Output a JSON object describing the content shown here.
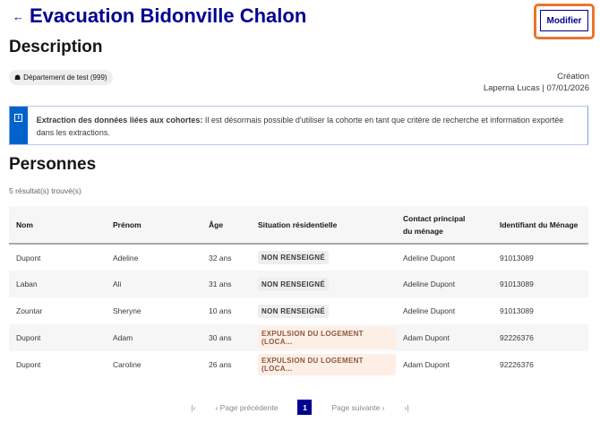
{
  "header": {
    "title": "Evacuation Bidonville Chalon",
    "back_icon": "←",
    "edit_label": "Modifier"
  },
  "description": {
    "heading": "Description",
    "badge": "Département de test (999)",
    "creation_label": "Création",
    "creation_value": "Laperna Lucas | 07/01/2026"
  },
  "notice": {
    "bold": "Extraction des données liées aux cohortes:",
    "text": " Il est désormais possible d'utiliser la cohorte en tant que critère de recherche et information exportée dans les extractions.",
    "icon": "i"
  },
  "persons": {
    "heading": "Personnes",
    "count": "5 résultat(s) trouvé(s)",
    "columns": [
      "Nom",
      "Prénom",
      "Âge",
      "Situation résidentielle",
      "Contact principal du ménage",
      "Identifiant du Ménage"
    ],
    "rows": [
      {
        "nom": "Dupont",
        "prenom": "Adeline",
        "age": "32 ans",
        "situation": "NON RENSEIGNÉ",
        "type": "none",
        "contact": "Adeline Dupont",
        "id": "91013089"
      },
      {
        "nom": "Laban",
        "prenom": "Ali",
        "age": "31 ans",
        "situation": "NON RENSEIGNÉ",
        "type": "none",
        "contact": "Adeline Dupont",
        "id": "91013089"
      },
      {
        "nom": "Zountar",
        "prenom": "Sheryne",
        "age": "10 ans",
        "situation": "NON RENSEIGNÉ",
        "type": "none",
        "contact": "Adeline Dupont",
        "id": "91013089"
      },
      {
        "nom": "Dupont",
        "prenom": "Adam",
        "age": "30 ans",
        "situation": "EXPULSION DU LOGEMENT (LOCA...",
        "type": "exp",
        "contact": "Adam Dupont",
        "id": "92226376"
      },
      {
        "nom": "Dupont",
        "prenom": "Caroline",
        "age": "26 ans",
        "situation": "EXPULSION DU LOGEMENT (LOCA...",
        "type": "exp",
        "contact": "Adam Dupont",
        "id": "92226376"
      }
    ]
  },
  "pagination": {
    "first": "|‹",
    "prev": "‹  Page précédente",
    "current": "1",
    "next": "Page suivante  ›",
    "last": "›|"
  },
  "colors": {
    "primary": "#000091",
    "highlight": "#e8762d",
    "info": "#0063cb"
  }
}
